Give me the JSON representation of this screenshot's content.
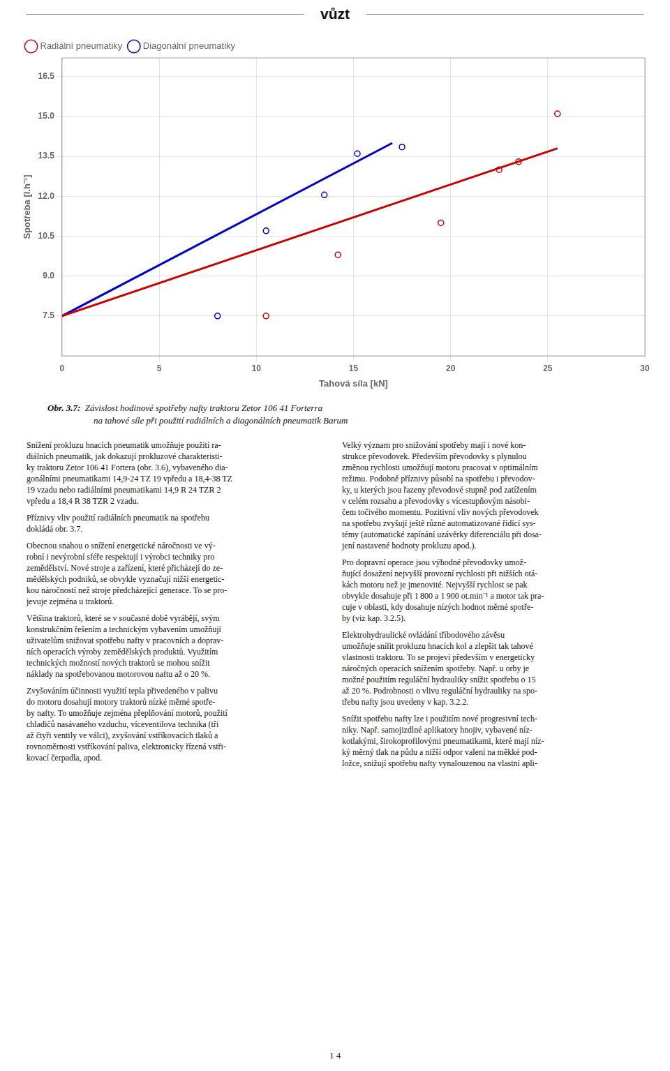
{
  "header": "vůzt",
  "chart_data": {
    "type": "scatter",
    "x_label": "Tahová síla [kN]",
    "y_label": "Spotřeba [l.h⁻¹]",
    "xlim": [
      0,
      30
    ],
    "ylim": [
      6.0,
      17.2
    ],
    "xticks": [
      0,
      5,
      10,
      15,
      20,
      25,
      30
    ],
    "yticks": [
      7.5,
      {
        "value": 9.0,
        "label": "9.0"
      },
      10.5,
      {
        "value": 12.0,
        "label": "12.0"
      },
      13.5,
      {
        "value": 15.0,
        "label": "15.0"
      },
      16.5
    ],
    "grid": true,
    "legend": "upper left",
    "series": [
      {
        "type": "line",
        "color": "#CC0000",
        "line_style": "solid",
        "x": [
          0.0,
          25.5
        ],
        "values": [
          7.5,
          13.8
        ]
      },
      {
        "type": "line",
        "color": "#0000CC",
        "line_style": "solid",
        "x": [
          0.0,
          17.0
        ],
        "values": [
          7.5,
          14.0
        ]
      },
      {
        "name": "Radiální pneumatiky",
        "type": "scatter",
        "color": "#CC0000",
        "marker": "o",
        "x": [
          10.5,
          14.2,
          19.5,
          22.5,
          23.5,
          25.5
        ],
        "values": [
          7.5,
          9.8,
          11.0,
          13.0,
          13.3,
          15.1
        ]
      },
      {
        "name": "Diagonální pneumatiky",
        "type": "scatter",
        "color": "#0000CC",
        "marker": "o",
        "x": [
          8.0,
          10.5,
          13.5,
          15.2,
          17.5
        ],
        "values": [
          7.5,
          10.7,
          12.05,
          13.6,
          13.85
        ]
      }
    ]
  },
  "caption_bold": "Obr. 3.7:",
  "caption_lines": [
    "Závislost hodinové spotřeby nafty traktoru Zetor 106 41 Forterra",
    "na tahové síle při použití radiálních a diagonálních pneumatik Barum"
  ],
  "body_col1_lines": [
    "Snížení prokluzu hnacích pneumatik umožňuje použití ra-",
    "diálních pneumatik, jak dokazují prokluzové charakteristi-",
    "ky traktoru Zetor 106 41 Fortera (obr. 3.6), vybaveného dia-",
    "gonálními pneumatikami 14,9-24 TZ 19 vpředu a 18,4-38 TZ",
    "19 vzadu nebo radiálními pneumatikami 14,9 R 24 TZR 2",
    "vpředu a 18,4 R 38 TZR 2 vzadu.",
    "",
    "Příznivy vliv použití radiálních pneumatik na spotřebu",
    "dokládá obr. 3.7.",
    "",
    "Obecnou snahou o snížení energetické náročnosti ve vý-",
    "robní i nevýrobní sféře respektují i výrobci techniky pro",
    "zemědělství. Nové stroje a zařízení, které přicházejí do ze-",
    "mědělských podniků, se obvykle vyznačují nižší energetic-",
    "kou náročností než stroje předcházející generace. To se pro-",
    "jevuje zejména u traktorů.",
    "",
    "Většina traktorů, které se v současné době vyrábějí, svým",
    "konstrukčním řešením a technickým vybavením umožňují",
    "uživatelům snižovat spotřebu nafty v pracovních a doprav-",
    "ních operacích výroby zemědělských produktů. Využitím",
    "technických možností nových traktorů se mohou snížit",
    "náklady na spotřebovanou motorovou naftu až o 20 %.",
    "",
    "Zvyšováním účinnosti využití tepla přivedeného v palivu",
    "do motoru dosahují motory traktorů nízké měrné spotře-",
    "by nafty. To umožňuje zejména přeplňování motorů, použití",
    "chladičů nasávaného vzduchu, víceventilova technika (tři",
    "až čtyři ventily ve válci), zvyšování vstříkovacích tlaků a",
    "rovnoměrnosti vstříkování paliva, elektronicky řízená vstři-",
    "kovací čerpadla, apod."
  ],
  "body_col2_lines": [
    "Velký význam pro snižování spotřeby mají i nové kon-",
    "strukce převodovek. Především převodovky s plynulou",
    "změnou rychlosti umožňují motoru pracovat v optimálním",
    "režimu. Podobně příznivy působí na spotřebu i převodov-",
    "ky, u kterých jsou řazeny převodové stupně pod zatížením",
    "v celém rozsahu a převodovky s vícestupňovým násobi-",
    "čem točivého momentu. Pozitivní vliv nových převodovek",
    "na spotřebu zvyšují ještě různé automatizované řídící sys-",
    "témy (automatické zapínání uzávěrky diferenciálu při dosa-",
    "jení nastavené hodnoty prokluzu apod.).",
    "",
    "Pro dopravní operace jsou výhodné převodovky umož-",
    "ňující dosažení nejvyšší provozní rychlosti při nižších otá-",
    "kách motoru než je jmenovité. Nejvyšší rychlost se pak",
    "obvykle dosahuje při 1 800 a 1 900 ot.min⁻¹ a motor tak pra-",
    "cuje v oblasti, kdy dosahuje nízých hodnot měrné spotře-",
    "by (viz kap. 3.2.5).",
    "",
    "Elektrohydraulické ovládání tříbodového závěsu",
    "umožňuje sníſit prokluzu hnacích kol a zlepšit tak tahové",
    "vlastnosti traktoru. To se projeví především v energeticky",
    "náročných operacích snížením spotřeby. Např. u orby je",
    "možné použitím reguláční hydrauliky snížit spotřebu o 15",
    "až 20 %. Podrobnosti o vlivu reguláční hydrauliky na spo-",
    "třebu nafty jsou uvedeny v kap. 3.2.2.",
    "",
    "Snížit spotřebu nafty lze i použitím nové progresivní tech-",
    "niky. Např. samojizdlné aplikatory hnojiv, vybavené níz-",
    "kotlakými, širokoprofilovými pneumatikami, které mají níz-",
    "ký měrný tlak na půdu a nižší odpor valení na měkké pod-",
    "ložce, snižují spotřebu nafty vynalouzenou na vlastní apli-"
  ],
  "page_number": "1 4"
}
